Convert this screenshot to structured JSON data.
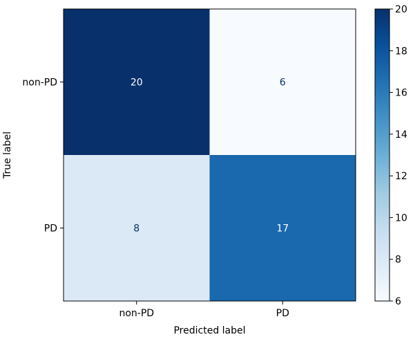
{
  "chart_data": {
    "type": "heatmap",
    "title": "",
    "xlabel": "Predicted label",
    "ylabel": "True label",
    "x_categories": [
      "non-PD",
      "PD"
    ],
    "y_categories": [
      "non-PD",
      "PD"
    ],
    "matrix": [
      [
        20,
        6
      ],
      [
        8,
        17
      ]
    ],
    "colormap": "Blues",
    "colorbar": {
      "min": 6,
      "max": 20,
      "ticks": [
        6,
        8,
        10,
        12,
        14,
        16,
        18,
        20
      ]
    },
    "grid": false
  }
}
